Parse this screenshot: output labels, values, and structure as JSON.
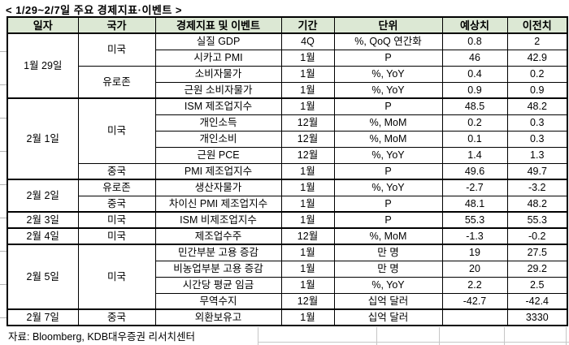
{
  "title": "< 1/29~2/7일 주요 경제지표·이벤트 >",
  "source": "자료: Bloomberg, KDB대우증권 리서치센터",
  "colors": {
    "header_bg": "#dce8d4",
    "border": "#000000"
  },
  "table": {
    "headers": [
      "일자",
      "국가",
      "경제지표 및 이벤트",
      "기간",
      "단위",
      "예상치",
      "이전치"
    ],
    "rows": [
      {
        "date": "1월 29일",
        "date_rowspan": 4,
        "country": "미국",
        "country_rowspan": 2,
        "indicator": "실질 GDP",
        "period": "4Q",
        "unit": "%, QoQ 연간화",
        "forecast": "0.8",
        "previous": "2",
        "divider": "thick"
      },
      {
        "indicator": "시카고 PMI",
        "period": "1월",
        "unit": "P",
        "forecast": "46",
        "previous": "42.9",
        "divider": "thin"
      },
      {
        "country": "유로존",
        "country_rowspan": 2,
        "indicator": "소비자물가",
        "period": "1월",
        "unit": "%, YoY",
        "forecast": "0.4",
        "previous": "0.2",
        "divider": "thin"
      },
      {
        "indicator": "근원 소비자물가",
        "period": "1월",
        "unit": "%, YoY",
        "forecast": "0.9",
        "previous": "0.9",
        "divider": "thin"
      },
      {
        "date": "2월 1일",
        "date_rowspan": 5,
        "country": "미국",
        "country_rowspan": 4,
        "indicator": "ISM 제조업지수",
        "period": "1월",
        "unit": "P",
        "forecast": "48.5",
        "previous": "48.2",
        "divider": "thick"
      },
      {
        "indicator": "개인소득",
        "period": "12월",
        "unit": "%, MoM",
        "forecast": "0.2",
        "previous": "0.3",
        "divider": "thin"
      },
      {
        "indicator": "개인소비",
        "period": "12월",
        "unit": "%, MoM",
        "forecast": "0.1",
        "previous": "0.3",
        "divider": "thin"
      },
      {
        "indicator": "근원 PCE",
        "period": "12월",
        "unit": "%, YoY",
        "forecast": "1.4",
        "previous": "1.3",
        "divider": "thin"
      },
      {
        "country": "중국",
        "country_rowspan": 1,
        "indicator": "PMI 제조업지수",
        "period": "1월",
        "unit": "P",
        "forecast": "49.6",
        "previous": "49.7",
        "divider": "thin"
      },
      {
        "date": "2월 2일",
        "date_rowspan": 2,
        "country": "유로존",
        "country_rowspan": 1,
        "indicator": "생산자물가",
        "period": "1월",
        "unit": "%, YoY",
        "forecast": "-2.7",
        "previous": "-3.2",
        "divider": "thick"
      },
      {
        "country": "중국",
        "country_rowspan": 1,
        "indicator": "차이신 PMI 제조업지수",
        "period": "1월",
        "unit": "P",
        "forecast": "48.1",
        "previous": "48.2",
        "divider": "thin"
      },
      {
        "date": "2월 3일",
        "date_rowspan": 1,
        "country": "미국",
        "country_rowspan": 1,
        "indicator": "ISM 비제조업지수",
        "period": "1월",
        "unit": "P",
        "forecast": "55.3",
        "previous": "55.3",
        "divider": "thick"
      },
      {
        "date": "2월 4일",
        "date_rowspan": 1,
        "country": "미국",
        "country_rowspan": 1,
        "indicator": "제조업수주",
        "period": "12월",
        "unit": "%, MoM",
        "forecast": "-1.3",
        "previous": "-0.2",
        "divider": "thick"
      },
      {
        "date": "2월 5일",
        "date_rowspan": 4,
        "country": "미국",
        "country_rowspan": 4,
        "indicator": "민간부분 고용 증감",
        "period": "1월",
        "unit": "만 명",
        "forecast": "19",
        "previous": "27.5",
        "divider": "thick"
      },
      {
        "indicator": "비농업부분 고용 증감",
        "period": "1월",
        "unit": "만 명",
        "forecast": "20",
        "previous": "29.2",
        "divider": "thin"
      },
      {
        "indicator": "시간당 평균 임금",
        "period": "1월",
        "unit": "%, YoY",
        "forecast": "2.2",
        "previous": "2.5",
        "divider": "thin"
      },
      {
        "indicator": "무역수지",
        "period": "12월",
        "unit": "십억 달러",
        "forecast": "-42.7",
        "previous": "-42.4",
        "divider": "thin"
      },
      {
        "date": "2월 7일",
        "date_rowspan": 1,
        "country": "중국",
        "country_rowspan": 1,
        "indicator": "외환보유고",
        "period": "1월",
        "unit": "십억 달러",
        "forecast": "",
        "previous": "3330",
        "divider": "thick"
      }
    ]
  }
}
